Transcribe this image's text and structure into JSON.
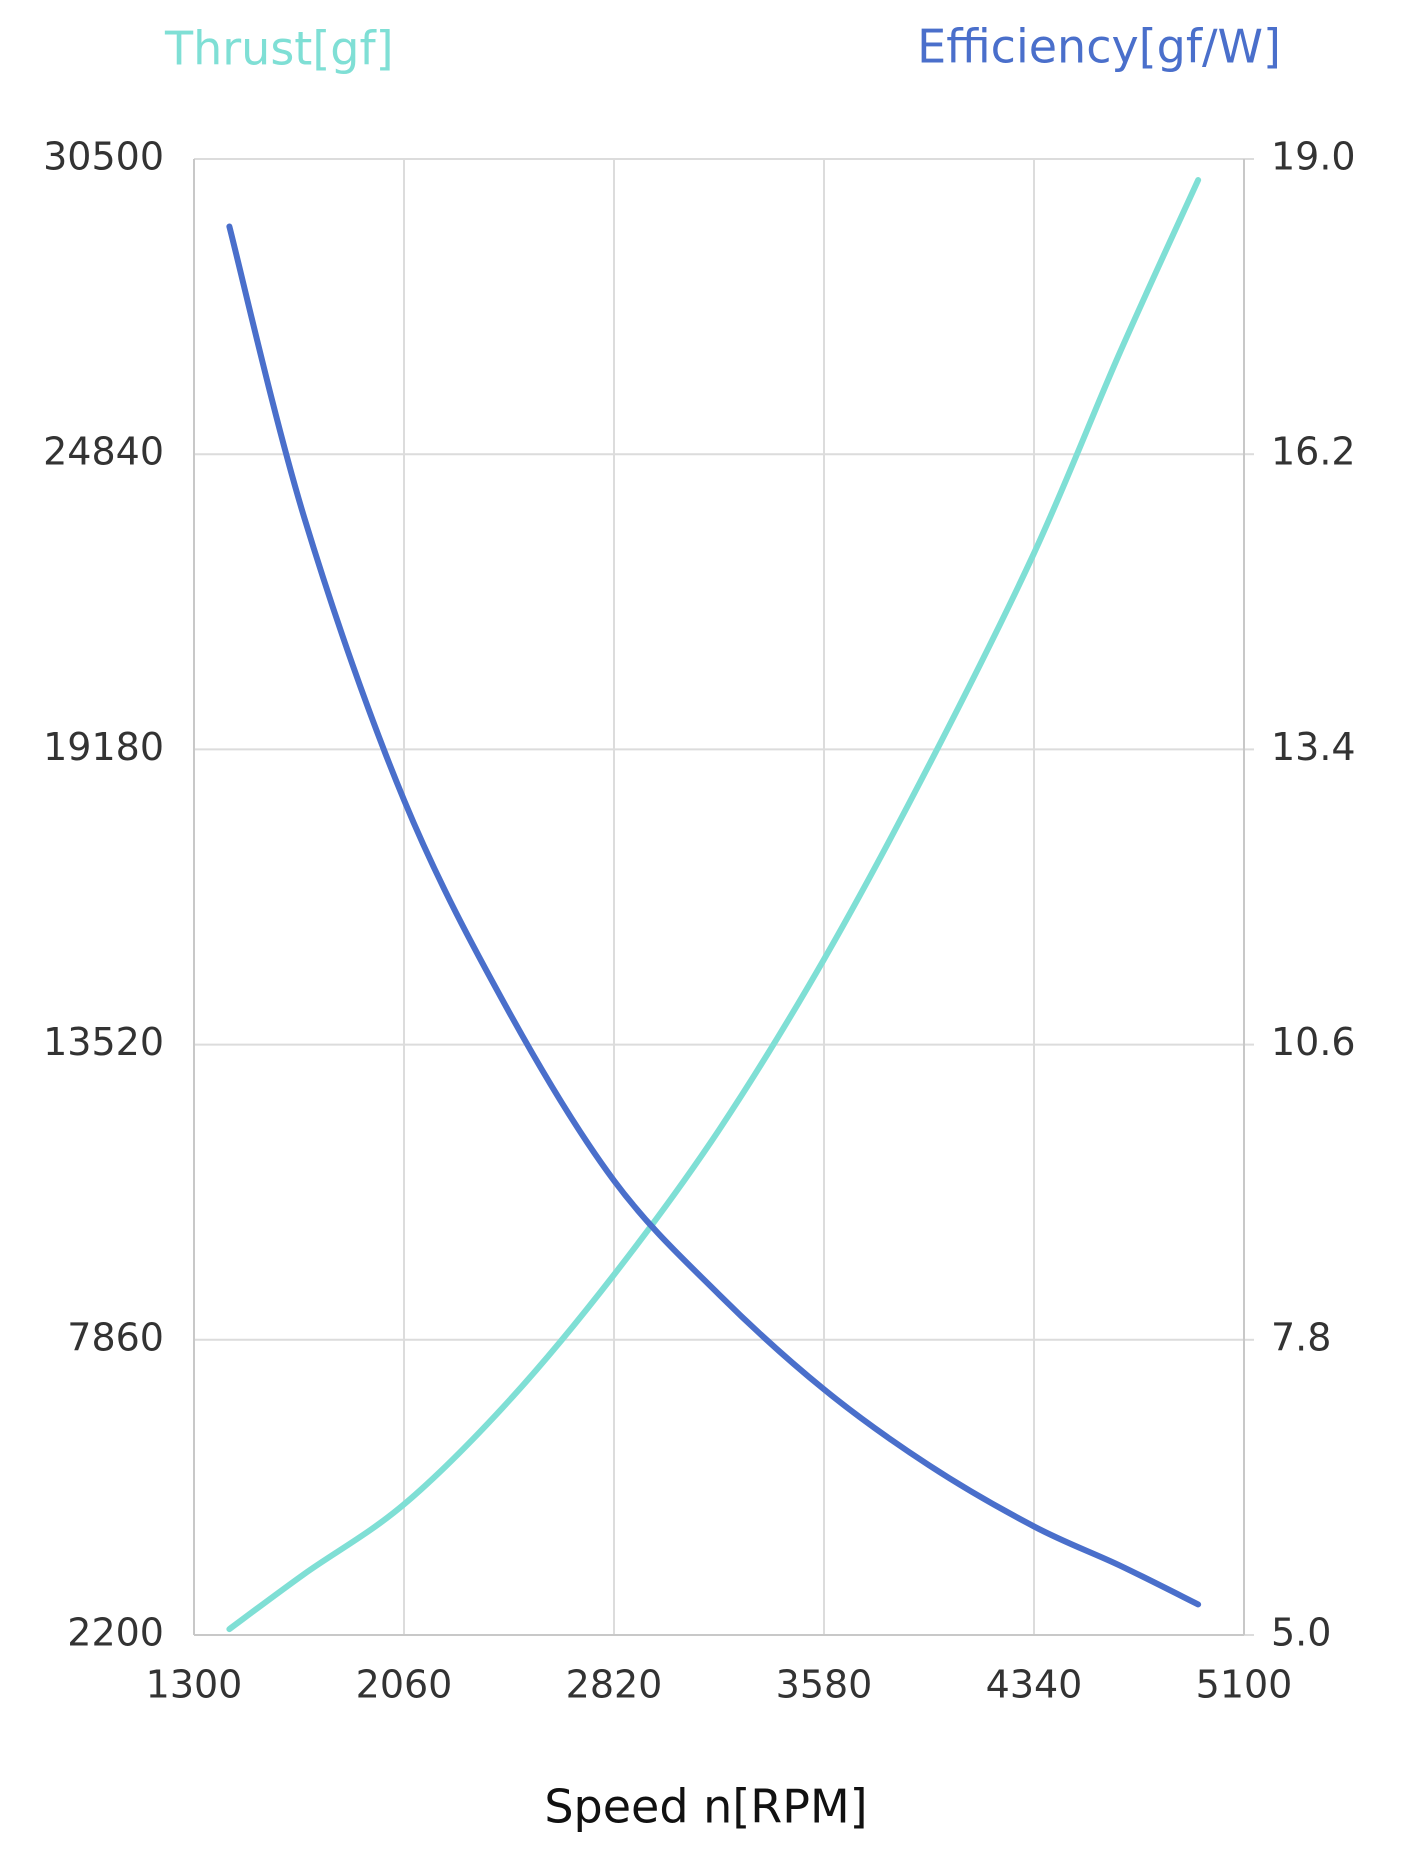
{
  "chart_data": {
    "type": "line",
    "y_axis_title": "Thrust[gf]",
    "y2_axis_title": "Efficiency[gf/W]",
    "x_axis_title": "Speed n[RPM]",
    "x": [
      1428,
      1700,
      2060,
      2440,
      2820,
      3200,
      3580,
      3960,
      4340,
      4650,
      4934
    ],
    "series": [
      {
        "name": "Thrust[gf]",
        "color": "#7fdfd5",
        "values": [
          2313,
          3374,
          4705,
          6691,
          9107,
          11883,
          15155,
          18880,
          22942,
          26780,
          30096
        ]
      },
      {
        "name": "Efficiency[gf/W]",
        "color": "#4a6fcb",
        "axis": "y2",
        "values": [
          18.36,
          15.59,
          12.92,
          10.91,
          9.31,
          8.23,
          7.33,
          6.61,
          6.03,
          5.66,
          5.29
        ]
      }
    ],
    "xlim": [
      1300,
      5100
    ],
    "xticks": [
      1300,
      2060,
      2820,
      3580,
      4340,
      5100
    ],
    "ylim": [
      2200,
      30500
    ],
    "yticks": [
      2200,
      7860,
      13520,
      19180,
      24840,
      30500
    ],
    "y2lim": [
      5,
      19
    ],
    "y2ticks": [
      {
        "value": 5,
        "label": "5.0"
      },
      7.8,
      10.6,
      13.4,
      16.2,
      {
        "value": 19,
        "label": "19.0"
      }
    ],
    "grid": true
  }
}
